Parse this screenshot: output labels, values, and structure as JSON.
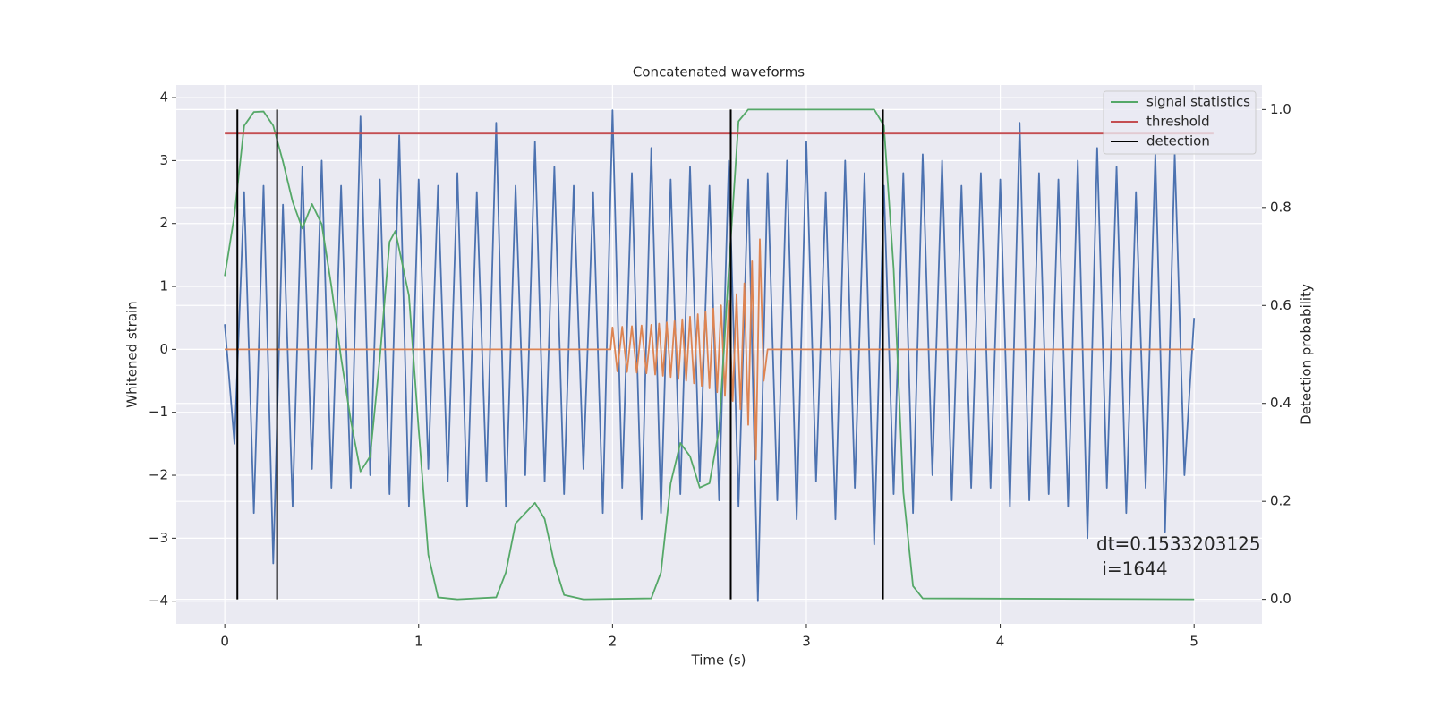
{
  "chart_data": {
    "type": "line",
    "title": "Concatenated waveforms",
    "xlabel": "Time (s)",
    "ylabel": "Whitened strain",
    "y2label": "Detection probability",
    "xlim": [
      -0.25,
      5.35
    ],
    "xticks": [
      0,
      1,
      2,
      3,
      4,
      5
    ],
    "ylim": [
      -4.36,
      4.2
    ],
    "yticks": [
      {
        "value": -4,
        "label": "−4"
      },
      {
        "value": -3,
        "label": "−3"
      },
      {
        "value": -2,
        "label": "−2"
      },
      {
        "value": -1,
        "label": "−1"
      },
      0,
      1,
      2,
      3,
      4
    ],
    "y2lim": [
      -0.05,
      1.05
    ],
    "y2ticks": [
      {
        "value": 0,
        "label": "0.0"
      },
      0.2,
      0.4,
      0.6,
      0.8,
      {
        "value": 1,
        "label": "1.0"
      }
    ],
    "grid": true,
    "legend": "upper right",
    "traces": [
      {
        "color": "#4c72b0",
        "x": [
          0,
          0.05,
          0.1,
          0.15,
          0.2,
          0.25,
          0.3,
          0.35,
          0.4,
          0.45,
          0.5,
          0.55,
          0.6,
          0.65,
          0.7,
          0.75,
          0.8,
          0.85,
          0.9,
          0.95,
          1,
          1.05,
          1.1,
          1.15,
          1.2,
          1.25,
          1.3,
          1.35,
          1.4,
          1.45,
          1.5,
          1.55,
          1.6,
          1.65,
          1.7,
          1.75,
          1.8,
          1.85,
          1.9,
          1.95,
          2,
          2.05,
          2.1,
          2.15,
          2.2,
          2.25,
          2.3,
          2.35,
          2.4,
          2.45,
          2.5,
          2.55,
          2.6,
          2.65,
          2.7,
          2.75,
          2.8,
          2.85,
          2.9,
          2.95,
          3,
          3.05,
          3.1,
          3.15,
          3.2,
          3.25,
          3.3,
          3.35,
          3.4,
          3.45,
          3.5,
          3.55,
          3.6,
          3.65,
          3.7,
          3.75,
          3.8,
          3.85,
          3.9,
          3.95,
          4,
          4.05,
          4.1,
          4.15,
          4.2,
          4.25,
          4.3,
          4.35,
          4.4,
          4.45,
          4.5,
          4.55,
          4.6,
          4.65,
          4.7,
          4.75,
          4.8,
          4.85,
          4.9,
          4.95,
          5
        ],
        "values": [
          0.4,
          -1.5,
          2.5,
          -2.6,
          2.6,
          -3.4,
          2.3,
          -2.5,
          2.9,
          -1.9,
          3.0,
          -2.2,
          2.6,
          -2.2,
          3.7,
          -2.0,
          2.7,
          -2.3,
          3.4,
          -2.5,
          2.7,
          -1.9,
          2.6,
          -2.1,
          2.8,
          -2.5,
          2.5,
          -2.1,
          3.6,
          -2.5,
          2.6,
          -2.0,
          3.3,
          -2.1,
          2.9,
          -2.3,
          2.6,
          -1.9,
          2.5,
          -2.6,
          3.8,
          -2.2,
          2.8,
          -2.7,
          3.2,
          -2.6,
          2.7,
          -2.3,
          2.9,
          -2.1,
          2.6,
          -2.4,
          3.0,
          -2.5,
          2.7,
          -4.0,
          2.8,
          -2.4,
          3.0,
          -2.7,
          3.3,
          -2.1,
          2.5,
          -2.7,
          3.0,
          -2.2,
          2.8,
          -3.1,
          2.6,
          -2.3,
          2.8,
          -2.6,
          3.1,
          -2.0,
          3.0,
          -2.4,
          2.6,
          -2.2,
          2.8,
          -2.2,
          2.7,
          -2.5,
          3.6,
          -2.4,
          2.8,
          -2.3,
          2.7,
          -2.5,
          3.0,
          -3.0,
          3.2,
          -2.2,
          2.9,
          -2.6,
          2.5,
          -2.2,
          3.1,
          -2.9,
          3.1,
          -2.0,
          0.5
        ]
      },
      {
        "color": "#dd8452",
        "x": [
          0,
          1.99,
          2.0,
          2.025,
          2.05,
          2.075,
          2.1,
          2.125,
          2.15,
          2.175,
          2.2,
          2.22,
          2.24,
          2.26,
          2.28,
          2.3,
          2.32,
          2.34,
          2.36,
          2.38,
          2.4,
          2.42,
          2.44,
          2.46,
          2.48,
          2.5,
          2.52,
          2.54,
          2.56,
          2.58,
          2.6,
          2.62,
          2.64,
          2.66,
          2.68,
          2.7,
          2.72,
          2.74,
          2.76,
          2.78,
          2.8,
          5.0
        ],
        "values": [
          0,
          0,
          0.35,
          -0.35,
          0.36,
          -0.36,
          0.37,
          -0.37,
          0.38,
          -0.38,
          0.39,
          -0.4,
          0.41,
          -0.42,
          0.43,
          -0.44,
          0.45,
          -0.47,
          0.48,
          -0.5,
          0.52,
          -0.54,
          0.56,
          -0.58,
          0.6,
          -0.62,
          0.65,
          -0.68,
          0.7,
          -0.74,
          0.78,
          -0.82,
          0.88,
          -0.95,
          1.05,
          -1.2,
          1.4,
          -1.75,
          1.75,
          -0.5,
          0,
          0
        ]
      }
    ],
    "series": [
      {
        "name": "signal statistics",
        "color": "#55a868",
        "axis": "y2",
        "x": [
          0,
          0.05,
          0.1,
          0.15,
          0.2,
          0.25,
          0.3,
          0.35,
          0.4,
          0.45,
          0.5,
          0.55,
          0.6,
          0.65,
          0.7,
          0.75,
          0.8,
          0.85,
          0.88,
          0.95,
          1.0,
          1.05,
          1.1,
          1.2,
          1.4,
          1.45,
          1.5,
          1.6,
          1.65,
          1.7,
          1.75,
          1.85,
          2.2,
          2.25,
          2.3,
          2.35,
          2.4,
          2.45,
          2.5,
          2.55,
          2.6,
          2.65,
          2.7,
          3.0,
          3.35,
          3.4,
          3.45,
          3.5,
          3.55,
          3.6,
          5.0
        ],
        "values": [
          0.66,
          0.785,
          0.967,
          0.995,
          0.996,
          0.967,
          0.894,
          0.812,
          0.757,
          0.807,
          0.766,
          0.639,
          0.493,
          0.365,
          0.261,
          0.292,
          0.493,
          0.73,
          0.752,
          0.62,
          0.347,
          0.091,
          0.004,
          0,
          0.004,
          0.055,
          0.155,
          0.197,
          0.164,
          0.073,
          0.009,
          0,
          0.002,
          0.055,
          0.237,
          0.319,
          0.292,
          0.228,
          0.237,
          0.347,
          0.675,
          0.976,
          1.0,
          1.0,
          1.0,
          0.967,
          0.675,
          0.219,
          0.027,
          0.002,
          0
        ]
      },
      {
        "name": "threshold",
        "color": "#c44e52",
        "axis": "y2",
        "x": [
          0,
          5.1
        ],
        "values": [
          0.951,
          0.951
        ]
      },
      {
        "name": "detection",
        "color": "#000000",
        "axis": "y2",
        "kind": "vlines",
        "x": [
          0.065,
          0.27,
          2.61,
          3.395
        ],
        "ymin": 0,
        "ymax": 1
      }
    ],
    "annotation": [
      "dt=0.1533203125",
      " i=1644"
    ]
  }
}
